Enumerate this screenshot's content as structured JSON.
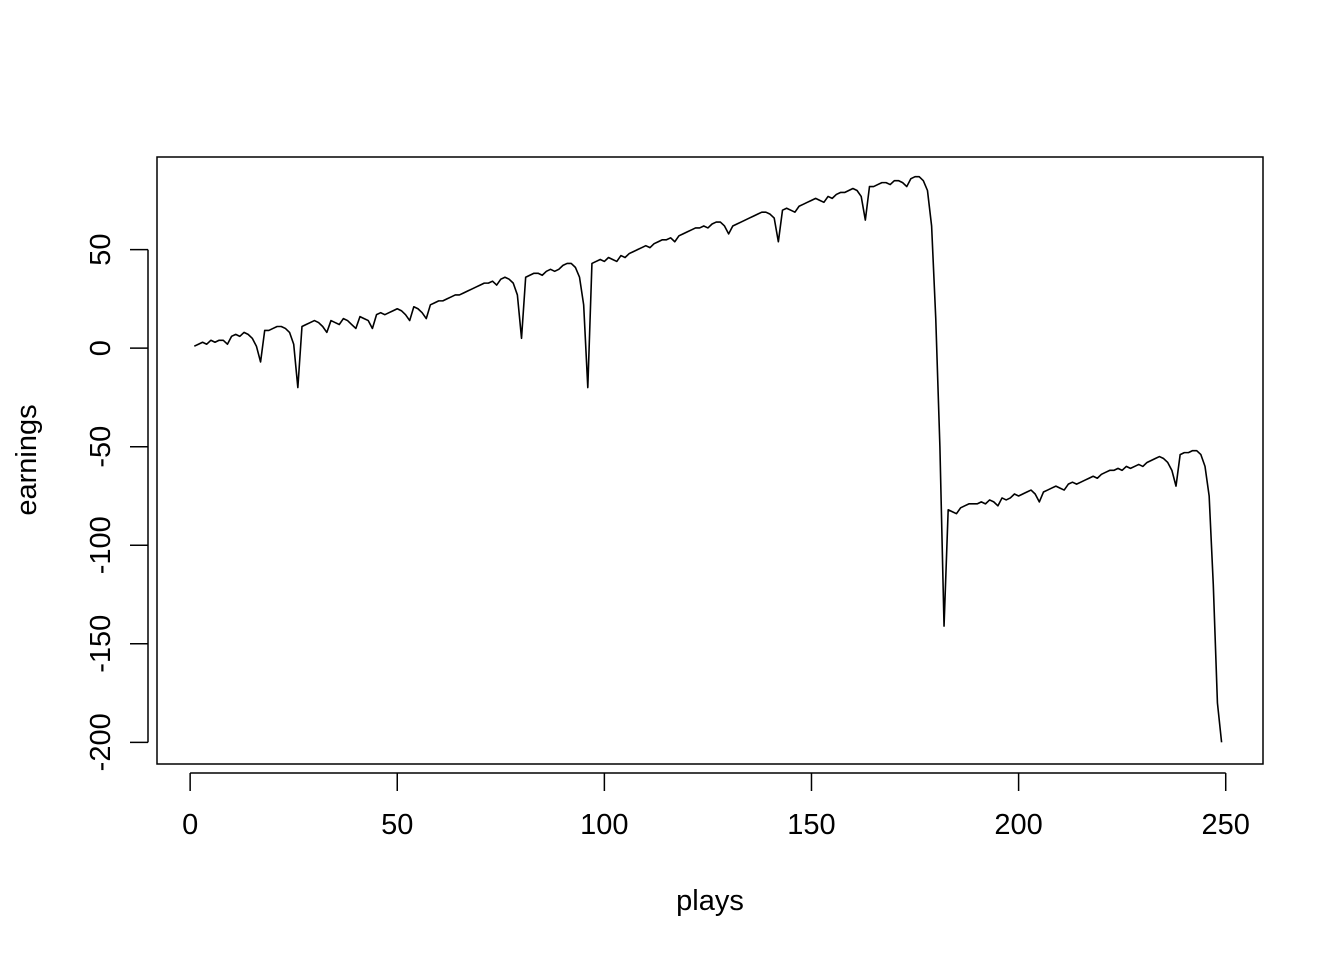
{
  "chart_data": {
    "type": "line",
    "title": "",
    "xlabel": "plays",
    "ylabel": "earnings",
    "xlim": [
      -8,
      259
    ],
    "ylim": [
      -211,
      97
    ],
    "x_ticks": [
      0,
      50,
      100,
      150,
      200,
      250
    ],
    "x_tick_labels": [
      "0",
      "50",
      "100",
      "150",
      "200",
      "250"
    ],
    "y_ticks": [
      -200,
      -150,
      -100,
      -50,
      0,
      50
    ],
    "y_tick_labels": [
      "-200",
      "-150",
      "-100",
      "-50",
      "0",
      "50"
    ],
    "grid": false,
    "legend": "none",
    "line_color": "#000000",
    "series": [
      {
        "x": [
          1,
          2,
          3,
          4,
          5,
          6,
          7,
          8,
          9,
          10,
          11,
          12,
          13,
          14,
          15,
          16,
          17,
          18,
          19,
          20,
          21,
          22,
          23,
          24,
          25,
          26,
          27,
          28,
          29,
          30,
          31,
          32,
          33,
          34,
          35,
          36,
          37,
          38,
          39,
          40,
          41,
          42,
          43,
          44,
          45,
          46,
          47,
          48,
          49,
          50,
          51,
          52,
          53,
          54,
          55,
          56,
          57,
          58,
          59,
          60,
          61,
          62,
          63,
          64,
          65,
          66,
          67,
          68,
          69,
          70,
          71,
          72,
          73,
          74,
          75,
          76,
          77,
          78,
          79,
          80,
          81,
          82,
          83,
          84,
          85,
          86,
          87,
          88,
          89,
          90,
          91,
          92,
          93,
          94,
          95,
          96,
          97,
          98,
          99,
          100,
          101,
          102,
          103,
          104,
          105,
          106,
          107,
          108,
          109,
          110,
          111,
          112,
          113,
          114,
          115,
          116,
          117,
          118,
          119,
          120,
          121,
          122,
          123,
          124,
          125,
          126,
          127,
          128,
          129,
          130,
          131,
          132,
          133,
          134,
          135,
          136,
          137,
          138,
          139,
          140,
          141,
          142,
          143,
          144,
          145,
          146,
          147,
          148,
          149,
          150,
          151,
          152,
          153,
          154,
          155,
          156,
          157,
          158,
          159,
          160,
          161,
          162,
          163,
          164,
          165,
          166,
          167,
          168,
          169,
          170,
          171,
          172,
          173,
          174,
          175,
          176,
          177,
          178,
          179,
          180,
          181,
          182,
          183,
          184,
          185,
          186,
          187,
          188,
          189,
          190,
          191,
          192,
          193,
          194,
          195,
          196,
          197,
          198,
          199,
          200,
          201,
          202,
          203,
          204,
          205,
          206,
          207,
          208,
          209,
          210,
          211,
          212,
          213,
          214,
          215,
          216,
          217,
          218,
          219,
          220,
          221,
          222,
          223,
          224,
          225,
          226,
          227,
          228,
          229,
          230,
          231,
          232,
          233,
          234,
          235,
          236,
          237,
          238,
          239,
          240,
          241,
          242,
          243,
          244,
          245,
          246,
          247,
          248,
          249
        ],
        "values": [
          1,
          2,
          3,
          2,
          4,
          3,
          4,
          4,
          2,
          6,
          7,
          6,
          8,
          7,
          5,
          1,
          -7,
          9,
          9,
          10,
          11,
          11,
          10,
          8,
          2,
          -20,
          11,
          12,
          13,
          14,
          13,
          11,
          8,
          14,
          13,
          12,
          15,
          14,
          12,
          10,
          16,
          15,
          14,
          10,
          17,
          18,
          17,
          18,
          19,
          20,
          19,
          17,
          14,
          21,
          20,
          18,
          15,
          22,
          23,
          24,
          24,
          25,
          26,
          27,
          27,
          28,
          29,
          30,
          31,
          32,
          33,
          33,
          34,
          32,
          35,
          36,
          35,
          33,
          27,
          5,
          36,
          37,
          38,
          38,
          37,
          39,
          40,
          39,
          40,
          42,
          43,
          43,
          41,
          36,
          22,
          -20,
          43,
          44,
          45,
          44,
          46,
          45,
          44,
          47,
          46,
          48,
          49,
          50,
          51,
          52,
          51,
          53,
          54,
          55,
          55,
          56,
          54,
          57,
          58,
          59,
          60,
          61,
          61,
          62,
          61,
          63,
          64,
          64,
          62,
          58,
          62,
          63,
          64,
          65,
          66,
          67,
          68,
          69,
          69,
          68,
          66,
          54,
          70,
          71,
          70,
          69,
          72,
          73,
          74,
          75,
          76,
          75,
          74,
          77,
          76,
          78,
          79,
          79,
          80,
          81,
          80,
          77,
          65,
          82,
          82,
          83,
          84,
          84,
          83,
          85,
          85,
          84,
          82,
          86,
          87,
          87,
          85,
          80,
          62,
          15,
          -50,
          -141,
          -82,
          -83,
          -84,
          -81,
          -80,
          -79,
          -79,
          -79,
          -78,
          -79,
          -77,
          -78,
          -80,
          -76,
          -77,
          -76,
          -74,
          -75,
          -74,
          -73,
          -72,
          -74,
          -78,
          -73,
          -72,
          -71,
          -70,
          -71,
          -72,
          -69,
          -68,
          -69,
          -68,
          -67,
          -66,
          -65,
          -66,
          -64,
          -63,
          -62,
          -62,
          -61,
          -62,
          -60,
          -61,
          -60,
          -59,
          -60,
          -58,
          -57,
          -56,
          -55,
          -56,
          -58,
          -62,
          -70,
          -54,
          -53,
          -53,
          -52,
          -52,
          -54,
          -60,
          -75,
          -120,
          -180,
          -200
        ]
      }
    ]
  }
}
